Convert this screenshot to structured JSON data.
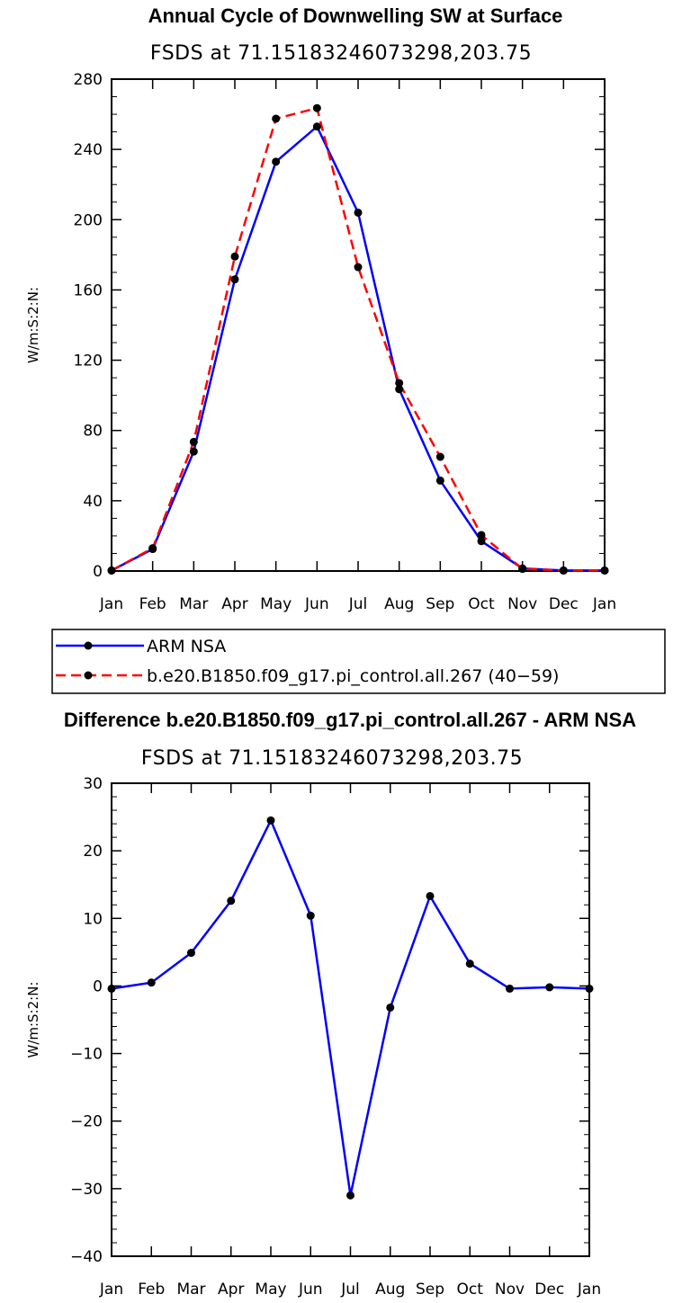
{
  "chart_data": [
    {
      "type": "line",
      "title": "Annual Cycle of Downwelling SW at Surface",
      "subtitle": "FSDS at 71.15183246073298,203.75",
      "ylabel": "W/m:S:2:N:",
      "xlabel": "",
      "categories": [
        "Jan",
        "Feb",
        "Mar",
        "Apr",
        "May",
        "Jun",
        "Jul",
        "Aug",
        "Sep",
        "Oct",
        "Nov",
        "Dec",
        "Jan"
      ],
      "ylim": [
        0,
        280
      ],
      "yticks": [
        0,
        40,
        80,
        120,
        160,
        200,
        240,
        280
      ],
      "grid": false,
      "legend_position": "bottom",
      "series": [
        {
          "name": "ARM NSA",
          "color": "#0000ff",
          "dash": "solid",
          "values": [
            0.3,
            12.5,
            68,
            166,
            233,
            253,
            204,
            103.5,
            51.5,
            17,
            1.5,
            0.3,
            0.3
          ]
        },
        {
          "name": "b.e20.B1850.f09_g17.pi_control.all.267 (40−59)",
          "color": "#ff0000",
          "dash": "dashed",
          "values": [
            0.3,
            13,
            73.5,
            179,
            257.5,
            263.5,
            173,
            107,
            65,
            20.5,
            1.2,
            0.3,
            0.3
          ]
        }
      ]
    },
    {
      "type": "line",
      "title": "Difference b.e20.B1850.f09_g17.pi_control.all.267 - ARM NSA",
      "subtitle": "FSDS at 71.15183246073298,203.75",
      "ylabel": "W/m:S:2:N:",
      "xlabel": "",
      "categories": [
        "Jan",
        "Feb",
        "Mar",
        "Apr",
        "May",
        "Jun",
        "Jul",
        "Aug",
        "Sep",
        "Oct",
        "Nov",
        "Dec",
        "Jan"
      ],
      "ylim": [
        -40,
        30
      ],
      "yticks": [
        -40,
        -30,
        -20,
        -10,
        0,
        10,
        20,
        30
      ],
      "grid": false,
      "series": [
        {
          "name": "",
          "color": "#0000ff",
          "dash": "solid",
          "values": [
            -0.4,
            0.5,
            4.9,
            12.6,
            24.5,
            10.4,
            -31,
            -3.2,
            13.3,
            3.3,
            -0.4,
            -0.2,
            -0.4
          ]
        }
      ]
    }
  ]
}
